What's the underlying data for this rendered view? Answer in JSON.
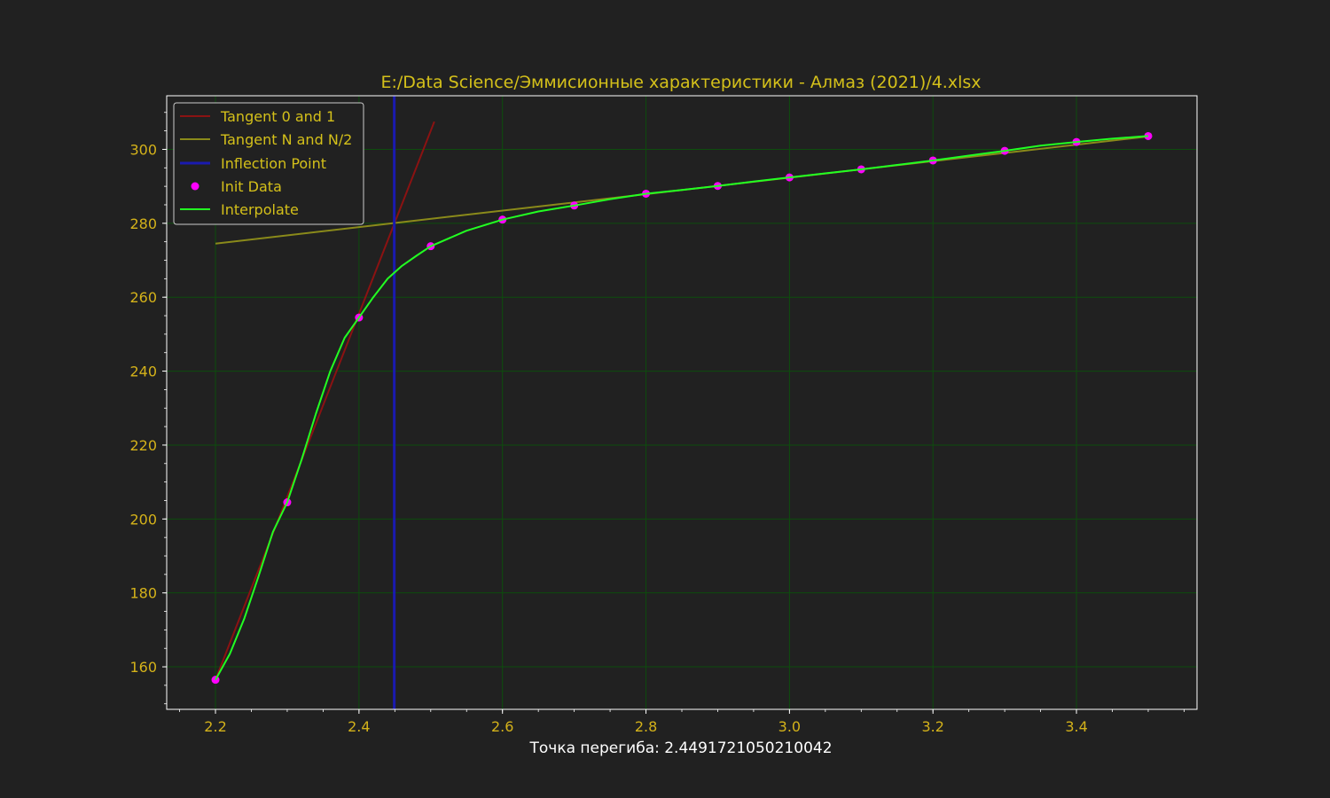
{
  "chart_data": {
    "type": "line",
    "title": "E:/Data Science/Эммисионные характеристики - Алмаз (2021)/4.xlsx",
    "xlabel": "Точка перегиба: 2.4491721050210042",
    "ylabel": "",
    "xlim": [
      2.132,
      3.568
    ],
    "ylim": [
      148.5,
      314.5
    ],
    "x_ticks": [
      2.2,
      2.4,
      2.6,
      2.8,
      3.0,
      3.2,
      3.4
    ],
    "x_tick_labels": [
      "2.2",
      "2.4",
      "2.6",
      "2.8",
      "3.0",
      "3.2",
      "3.4"
    ],
    "y_ticks": [
      160,
      180,
      200,
      220,
      240,
      260,
      280,
      300
    ],
    "y_tick_labels": [
      "160",
      "180",
      "200",
      "220",
      "240",
      "260",
      "280",
      "300"
    ],
    "grid": true,
    "legend_position": "top-left",
    "colors": {
      "background": "#212121",
      "axes_edge": "#ffffff",
      "grid": "#0d4d0d",
      "tick_label": "#d4b21a",
      "title": "#d4c01a",
      "xlabel": "#ffffff"
    },
    "series": [
      {
        "name": "Tangent 0 and 1",
        "kind": "line",
        "color": "#8b1212",
        "x": [
          2.2,
          2.505
        ],
        "y": [
          156.5,
          307.5
        ]
      },
      {
        "name": "Tangent N and N/2",
        "kind": "line",
        "color": "#8a8a1a",
        "x": [
          2.2,
          3.5
        ],
        "y": [
          274.5,
          303.5
        ]
      },
      {
        "name": "Inflection Point",
        "kind": "vline",
        "color": "#1a1ab0",
        "x": 2.4491721050210042
      },
      {
        "name": "Init Data",
        "kind": "scatter",
        "color": "#ff00ff",
        "x": [
          2.2,
          2.3,
          2.4,
          2.5,
          2.6,
          2.7,
          2.8,
          2.9,
          3.0,
          3.1,
          3.2,
          3.3,
          3.4,
          3.5
        ],
        "y": [
          156.5,
          204.5,
          254.5,
          273.8,
          281.0,
          284.8,
          288.0,
          290.1,
          292.4,
          294.6,
          297.0,
          299.6,
          302.0,
          303.6
        ]
      },
      {
        "name": "Interpolate",
        "kind": "line",
        "color": "#22ff22",
        "x": [
          2.2,
          2.22,
          2.24,
          2.26,
          2.28,
          2.3,
          2.32,
          2.34,
          2.36,
          2.38,
          2.4,
          2.42,
          2.44,
          2.46,
          2.48,
          2.5,
          2.55,
          2.6,
          2.65,
          2.7,
          2.75,
          2.8,
          2.85,
          2.9,
          2.95,
          3.0,
          3.05,
          3.1,
          3.15,
          3.2,
          3.25,
          3.3,
          3.35,
          3.4,
          3.45,
          3.5
        ],
        "y": [
          156.5,
          163.5,
          173.0,
          184.5,
          196.5,
          204.5,
          216.0,
          228.5,
          240.0,
          249.0,
          254.5,
          260.0,
          265.0,
          268.5,
          271.2,
          273.8,
          278.0,
          281.0,
          283.2,
          284.8,
          286.5,
          288.0,
          289.0,
          290.1,
          291.3,
          292.4,
          293.5,
          294.6,
          295.8,
          297.0,
          298.3,
          299.6,
          301.0,
          302.0,
          302.9,
          303.6
        ]
      }
    ]
  }
}
